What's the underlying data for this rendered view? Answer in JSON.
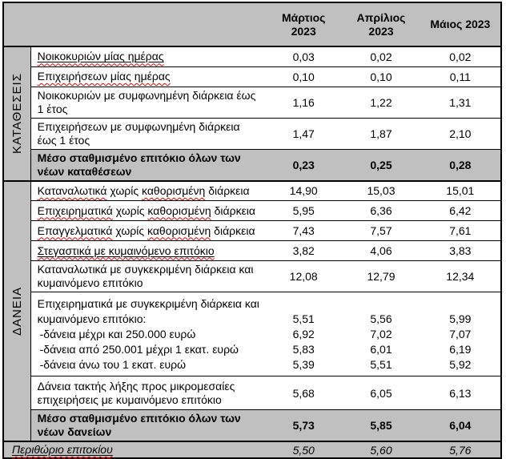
{
  "table": {
    "months": [
      {
        "line1": "Μάρτιος",
        "line2": "2023"
      },
      {
        "line1": "Απρίλιος",
        "line2": "2023"
      },
      {
        "line1": "Μάιος 2023",
        "line2": ""
      }
    ],
    "sections": [
      {
        "label": "ΚΑΤΑΘΕΣΕΙΣ",
        "rows": [
          {
            "label": "Νοικοκυριών μίας ημέρας",
            "values": [
              "0,03",
              "0,02",
              "0,02"
            ]
          },
          {
            "label": "Επιχειρήσεων μίας ημέρας",
            "values": [
              "0,10",
              "0,10",
              "0,11"
            ]
          },
          {
            "label": "Νοικοκυριών με συμφωνημένη διάρκεια έως 1 έτος",
            "values": [
              "1,16",
              "1,22",
              "1,31"
            ]
          },
          {
            "label": "Επιχειρήσεων με συμφωνημένη διάρκεια έως 1 έτος",
            "values": [
              "1,47",
              "1,87",
              "2,10"
            ]
          },
          {
            "label": "Μέσο σταθμισμένο επιτόκιο όλων των νέων καταθέσεων",
            "values": [
              "0,23",
              "0,25",
              "0,28"
            ]
          }
        ]
      },
      {
        "label": "ΔΑΝΕΙΑ",
        "rows": [
          {
            "parts": [
              {
                "t": "Καταναλωτικά",
                "sq": true
              },
              {
                "t": " χωρίς ",
                "sq": false
              },
              {
                "t": "καθορισμένη",
                "sq": true
              },
              {
                "t": " διάρκεια",
                "sq": false
              }
            ],
            "values": [
              "14,90",
              "15,03",
              "15,01"
            ]
          },
          {
            "parts": [
              {
                "t": "Επιχειρηματικά",
                "sq": true
              },
              {
                "t": " χωρίς ",
                "sq": false
              },
              {
                "t": "καθορισμένη",
                "sq": true
              },
              {
                "t": " διάρκεια",
                "sq": false
              }
            ],
            "values": [
              "5,95",
              "6,36",
              "6,42"
            ]
          },
          {
            "parts": [
              {
                "t": "Επαγγελματικά",
                "sq": true
              },
              {
                "t": " χωρίς ",
                "sq": false
              },
              {
                "t": "καθορισμένη",
                "sq": true
              },
              {
                "t": " διάρκεια",
                "sq": false
              }
            ],
            "values": [
              "7,43",
              "7,57",
              "7,61"
            ]
          },
          {
            "label": "Στεγαστικά με κυμαινόμενο επιτόκιο",
            "values": [
              "3,82",
              "4,06",
              "3,83"
            ]
          },
          {
            "label": "Καταναλωτικά με συγκεκριμένη διάρκεια και κυμαινόμενο επιτόκιο",
            "values": [
              "12,08",
              "12,79",
              "12,34"
            ]
          },
          {
            "lines": [
              "Επιχειρηματικά με συγκεκριμένη διάρκεια και",
              "κυμαινόμενο επιτόκιο:",
              "-δάνεια μέχρι και 250.000 ευρώ",
              "-δάνεια από 250.001 μέχρι 1 εκατ. ευρώ",
              "-δάνεια άνω του 1 εκατ. ευρώ"
            ],
            "values": [
              [
                "5,51",
                "6,92",
                "5,83",
                "5,39"
              ],
              [
                "5,56",
                "7,02",
                "6,01",
                "5,51"
              ],
              [
                "5,99",
                "7,07",
                "6,19",
                "5,92"
              ]
            ]
          },
          {
            "label": "Δάνεια τακτής λήξης προς μικρομεσαίες επιχειρήσεις με κυμαινόμενο επιτόκιο",
            "values": [
              "5,68",
              "6,05",
              "6,13"
            ]
          },
          {
            "label": "Μέσο σταθμισμένο επιτόκιο όλων των νέων δανείων",
            "values": [
              "5,73",
              "5,85",
              "6,04"
            ]
          }
        ]
      }
    ],
    "margin_row": {
      "label": "Περιθώριο επιτοκίου",
      "values": [
        "5,50",
        "5,60",
        "5,76"
      ]
    }
  }
}
